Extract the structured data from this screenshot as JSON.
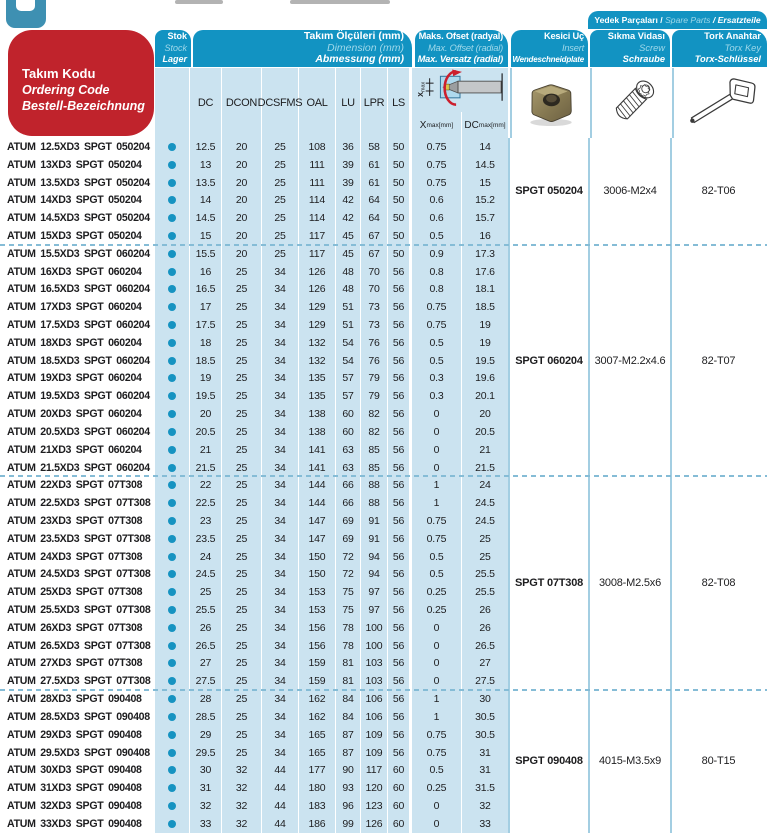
{
  "header": {
    "ordering_code": {
      "tr": "Takım Kodu",
      "en": "Ordering Code",
      "de": "Bestell-Bezeichnung"
    },
    "stock": {
      "tr": "Stok",
      "en": "Stock",
      "de": "Lager"
    },
    "dimensions": {
      "tr": "Takım Ölçüleri (mm)",
      "en": "Dimension (mm)",
      "de": "Abmessung (mm)"
    },
    "dimension_columns": [
      "DC",
      "DCON",
      "DCSFMS",
      "OAL",
      "LU",
      "LPR",
      "LS"
    ],
    "max_offset": {
      "tr": "Maks. Ofset (radyal)",
      "en": "Max. Offset (radial)",
      "de": "Max. Versatz (radial)"
    },
    "offset_columns": [
      {
        "base": "X",
        "sub": "max",
        "unit": "[mm]"
      },
      {
        "base": "DC",
        "sub": "max",
        "unit": "[mm]"
      }
    ],
    "offset_diagram_label": {
      "base": "X",
      "sub": "max"
    },
    "insert": {
      "tr": "Kesici Uç",
      "en": "Insert",
      "de": "Wendeschneidplate"
    },
    "spare_parts": {
      "tr": "Yedek Parçaları",
      "en": "Spare Parts",
      "de": "Ersatzteile"
    },
    "sep": " / ",
    "screw": {
      "tr": "Sıkma Vidası",
      "en": "Screw",
      "de": "Schraube"
    },
    "torx": {
      "tr": "Tork Anahtar",
      "en": "Torx Key",
      "de": "Torx-Schlüssel"
    }
  },
  "colors": {
    "teal": "#1293c2",
    "red": "#c0232c",
    "row_blue": "#cbe3f0",
    "divider_blue": "#a3cee2",
    "dashed_separator": "#85bcd6",
    "stock_dot": "#1693c1"
  },
  "groups": [
    {
      "insert_code": "SPGT 050204",
      "screw_code": "3006-M2x4",
      "torx_code": "82-T06",
      "rows": [
        {
          "code": "ATUM 12.5XD3 SPGT 050204",
          "stock": true,
          "dc": "12.5",
          "dcon": "20",
          "dcsfms": "25",
          "oal": "108",
          "lu": "36",
          "lpr": "58",
          "ls": "50",
          "xmax": "0.75",
          "dcmax": "14"
        },
        {
          "code": "ATUM 13XD3 SPGT 050204",
          "stock": true,
          "dc": "13",
          "dcon": "20",
          "dcsfms": "25",
          "oal": "111",
          "lu": "39",
          "lpr": "61",
          "ls": "50",
          "xmax": "0.75",
          "dcmax": "14.5"
        },
        {
          "code": "ATUM 13.5XD3 SPGT 050204",
          "stock": true,
          "dc": "13.5",
          "dcon": "20",
          "dcsfms": "25",
          "oal": "111",
          "lu": "39",
          "lpr": "61",
          "ls": "50",
          "xmax": "0.75",
          "dcmax": "15"
        },
        {
          "code": "ATUM 14XD3 SPGT 050204",
          "stock": true,
          "dc": "14",
          "dcon": "20",
          "dcsfms": "25",
          "oal": "114",
          "lu": "42",
          "lpr": "64",
          "ls": "50",
          "xmax": "0.6",
          "dcmax": "15.2"
        },
        {
          "code": "ATUM 14.5XD3 SPGT 050204",
          "stock": true,
          "dc": "14.5",
          "dcon": "20",
          "dcsfms": "25",
          "oal": "114",
          "lu": "42",
          "lpr": "64",
          "ls": "50",
          "xmax": "0.6",
          "dcmax": "15.7"
        },
        {
          "code": "ATUM 15XD3 SPGT 050204",
          "stock": true,
          "dc": "15",
          "dcon": "20",
          "dcsfms": "25",
          "oal": "117",
          "lu": "45",
          "lpr": "67",
          "ls": "50",
          "xmax": "0.5",
          "dcmax": "16"
        }
      ]
    },
    {
      "insert_code": "SPGT 060204",
      "screw_code": "3007-M2.2x4.6",
      "torx_code": "82-T07",
      "rows": [
        {
          "code": "ATUM 15.5XD3 SPGT 060204",
          "stock": true,
          "dc": "15.5",
          "dcon": "20",
          "dcsfms": "25",
          "oal": "117",
          "lu": "45",
          "lpr": "67",
          "ls": "50",
          "xmax": "0.9",
          "dcmax": "17.3"
        },
        {
          "code": "ATUM 16XD3 SPGT 060204",
          "stock": true,
          "dc": "16",
          "dcon": "25",
          "dcsfms": "34",
          "oal": "126",
          "lu": "48",
          "lpr": "70",
          "ls": "56",
          "xmax": "0.8",
          "dcmax": "17.6"
        },
        {
          "code": "ATUM 16.5XD3 SPGT 060204",
          "stock": true,
          "dc": "16.5",
          "dcon": "25",
          "dcsfms": "34",
          "oal": "126",
          "lu": "48",
          "lpr": "70",
          "ls": "56",
          "xmax": "0.8",
          "dcmax": "18.1"
        },
        {
          "code": "ATUM 17XD3 SPGT 060204",
          "stock": true,
          "dc": "17",
          "dcon": "25",
          "dcsfms": "34",
          "oal": "129",
          "lu": "51",
          "lpr": "73",
          "ls": "56",
          "xmax": "0.75",
          "dcmax": "18.5"
        },
        {
          "code": "ATUM 17.5XD3 SPGT 060204",
          "stock": true,
          "dc": "17.5",
          "dcon": "25",
          "dcsfms": "34",
          "oal": "129",
          "lu": "51",
          "lpr": "73",
          "ls": "56",
          "xmax": "0.75",
          "dcmax": "19"
        },
        {
          "code": "ATUM 18XD3 SPGT 060204",
          "stock": true,
          "dc": "18",
          "dcon": "25",
          "dcsfms": "34",
          "oal": "132",
          "lu": "54",
          "lpr": "76",
          "ls": "56",
          "xmax": "0.5",
          "dcmax": "19"
        },
        {
          "code": "ATUM 18.5XD3 SPGT 060204",
          "stock": true,
          "dc": "18.5",
          "dcon": "25",
          "dcsfms": "34",
          "oal": "132",
          "lu": "54",
          "lpr": "76",
          "ls": "56",
          "xmax": "0.5",
          "dcmax": "19.5"
        },
        {
          "code": "ATUM 19XD3 SPGT 060204",
          "stock": true,
          "dc": "19",
          "dcon": "25",
          "dcsfms": "34",
          "oal": "135",
          "lu": "57",
          "lpr": "79",
          "ls": "56",
          "xmax": "0.3",
          "dcmax": "19.6"
        },
        {
          "code": "ATUM 19.5XD3 SPGT 060204",
          "stock": true,
          "dc": "19.5",
          "dcon": "25",
          "dcsfms": "34",
          "oal": "135",
          "lu": "57",
          "lpr": "79",
          "ls": "56",
          "xmax": "0.3",
          "dcmax": "20.1"
        },
        {
          "code": "ATUM 20XD3 SPGT 060204",
          "stock": true,
          "dc": "20",
          "dcon": "25",
          "dcsfms": "34",
          "oal": "138",
          "lu": "60",
          "lpr": "82",
          "ls": "56",
          "xmax": "0",
          "dcmax": "20"
        },
        {
          "code": "ATUM 20.5XD3 SPGT 060204",
          "stock": true,
          "dc": "20.5",
          "dcon": "25",
          "dcsfms": "34",
          "oal": "138",
          "lu": "60",
          "lpr": "82",
          "ls": "56",
          "xmax": "0",
          "dcmax": "20.5"
        },
        {
          "code": "ATUM 21XD3 SPGT 060204",
          "stock": true,
          "dc": "21",
          "dcon": "25",
          "dcsfms": "34",
          "oal": "141",
          "lu": "63",
          "lpr": "85",
          "ls": "56",
          "xmax": "0",
          "dcmax": "21"
        },
        {
          "code": "ATUM 21.5XD3 SPGT 060204",
          "stock": true,
          "dc": "21.5",
          "dcon": "25",
          "dcsfms": "34",
          "oal": "141",
          "lu": "63",
          "lpr": "85",
          "ls": "56",
          "xmax": "0",
          "dcmax": "21.5"
        }
      ]
    },
    {
      "insert_code": "SPGT 07T308",
      "screw_code": "3008-M2.5x6",
      "torx_code": "82-T08",
      "rows": [
        {
          "code": "ATUM 22XD3 SPGT 07T308",
          "stock": true,
          "dc": "22",
          "dcon": "25",
          "dcsfms": "34",
          "oal": "144",
          "lu": "66",
          "lpr": "88",
          "ls": "56",
          "xmax": "1",
          "dcmax": "24"
        },
        {
          "code": "ATUM 22.5XD3 SPGT 07T308",
          "stock": true,
          "dc": "22.5",
          "dcon": "25",
          "dcsfms": "34",
          "oal": "144",
          "lu": "66",
          "lpr": "88",
          "ls": "56",
          "xmax": "1",
          "dcmax": "24.5"
        },
        {
          "code": "ATUM 23XD3 SPGT 07T308",
          "stock": true,
          "dc": "23",
          "dcon": "25",
          "dcsfms": "34",
          "oal": "147",
          "lu": "69",
          "lpr": "91",
          "ls": "56",
          "xmax": "0.75",
          "dcmax": "24.5"
        },
        {
          "code": "ATUM 23.5XD3 SPGT 07T308",
          "stock": true,
          "dc": "23.5",
          "dcon": "25",
          "dcsfms": "34",
          "oal": "147",
          "lu": "69",
          "lpr": "91",
          "ls": "56",
          "xmax": "0.75",
          "dcmax": "25"
        },
        {
          "code": "ATUM 24XD3 SPGT 07T308",
          "stock": true,
          "dc": "24",
          "dcon": "25",
          "dcsfms": "34",
          "oal": "150",
          "lu": "72",
          "lpr": "94",
          "ls": "56",
          "xmax": "0.5",
          "dcmax": "25"
        },
        {
          "code": "ATUM 24.5XD3 SPGT 07T308",
          "stock": true,
          "dc": "24.5",
          "dcon": "25",
          "dcsfms": "34",
          "oal": "150",
          "lu": "72",
          "lpr": "94",
          "ls": "56",
          "xmax": "0.5",
          "dcmax": "25.5"
        },
        {
          "code": "ATUM 25XD3 SPGT 07T308",
          "stock": true,
          "dc": "25",
          "dcon": "25",
          "dcsfms": "34",
          "oal": "153",
          "lu": "75",
          "lpr": "97",
          "ls": "56",
          "xmax": "0.25",
          "dcmax": "25.5"
        },
        {
          "code": "ATUM 25.5XD3 SPGT 07T308",
          "stock": true,
          "dc": "25.5",
          "dcon": "25",
          "dcsfms": "34",
          "oal": "153",
          "lu": "75",
          "lpr": "97",
          "ls": "56",
          "xmax": "0.25",
          "dcmax": "26"
        },
        {
          "code": "ATUM 26XD3 SPGT 07T308",
          "stock": true,
          "dc": "26",
          "dcon": "25",
          "dcsfms": "34",
          "oal": "156",
          "lu": "78",
          "lpr": "100",
          "ls": "56",
          "xmax": "0",
          "dcmax": "26"
        },
        {
          "code": "ATUM 26.5XD3 SPGT 07T308",
          "stock": true,
          "dc": "26.5",
          "dcon": "25",
          "dcsfms": "34",
          "oal": "156",
          "lu": "78",
          "lpr": "100",
          "ls": "56",
          "xmax": "0",
          "dcmax": "26.5"
        },
        {
          "code": "ATUM 27XD3 SPGT 07T308",
          "stock": true,
          "dc": "27",
          "dcon": "25",
          "dcsfms": "34",
          "oal": "159",
          "lu": "81",
          "lpr": "103",
          "ls": "56",
          "xmax": "0",
          "dcmax": "27"
        },
        {
          "code": "ATUM 27.5XD3 SPGT 07T308",
          "stock": true,
          "dc": "27.5",
          "dcon": "25",
          "dcsfms": "34",
          "oal": "159",
          "lu": "81",
          "lpr": "103",
          "ls": "56",
          "xmax": "0",
          "dcmax": "27.5"
        }
      ]
    },
    {
      "insert_code": "SPGT 090408",
      "screw_code": "4015-M3.5x9",
      "torx_code": "80-T15",
      "rows": [
        {
          "code": "ATUM 28XD3 SPGT 090408",
          "stock": true,
          "dc": "28",
          "dcon": "25",
          "dcsfms": "34",
          "oal": "162",
          "lu": "84",
          "lpr": "106",
          "ls": "56",
          "xmax": "1",
          "dcmax": "30"
        },
        {
          "code": "ATUM 28.5XD3 SPGT 090408",
          "stock": true,
          "dc": "28.5",
          "dcon": "25",
          "dcsfms": "34",
          "oal": "162",
          "lu": "84",
          "lpr": "106",
          "ls": "56",
          "xmax": "1",
          "dcmax": "30.5"
        },
        {
          "code": "ATUM 29XD3 SPGT 090408",
          "stock": true,
          "dc": "29",
          "dcon": "25",
          "dcsfms": "34",
          "oal": "165",
          "lu": "87",
          "lpr": "109",
          "ls": "56",
          "xmax": "0.75",
          "dcmax": "30.5"
        },
        {
          "code": "ATUM 29.5XD3 SPGT 090408",
          "stock": true,
          "dc": "29.5",
          "dcon": "25",
          "dcsfms": "34",
          "oal": "165",
          "lu": "87",
          "lpr": "109",
          "ls": "56",
          "xmax": "0.75",
          "dcmax": "31"
        },
        {
          "code": "ATUM 30XD3 SPGT 090408",
          "stock": true,
          "dc": "30",
          "dcon": "32",
          "dcsfms": "44",
          "oal": "177",
          "lu": "90",
          "lpr": "117",
          "ls": "60",
          "xmax": "0.5",
          "dcmax": "31"
        },
        {
          "code": "ATUM 31XD3 SPGT 090408",
          "stock": true,
          "dc": "31",
          "dcon": "32",
          "dcsfms": "44",
          "oal": "180",
          "lu": "93",
          "lpr": "120",
          "ls": "60",
          "xmax": "0.25",
          "dcmax": "31.5"
        },
        {
          "code": "ATUM 32XD3 SPGT 090408",
          "stock": true,
          "dc": "32",
          "dcon": "32",
          "dcsfms": "44",
          "oal": "183",
          "lu": "96",
          "lpr": "123",
          "ls": "60",
          "xmax": "0",
          "dcmax": "32"
        },
        {
          "code": "ATUM 33XD3 SPGT 090408",
          "stock": true,
          "dc": "33",
          "dcon": "32",
          "dcsfms": "44",
          "oal": "186",
          "lu": "99",
          "lpr": "126",
          "ls": "60",
          "xmax": "0",
          "dcmax": "33"
        }
      ]
    }
  ]
}
